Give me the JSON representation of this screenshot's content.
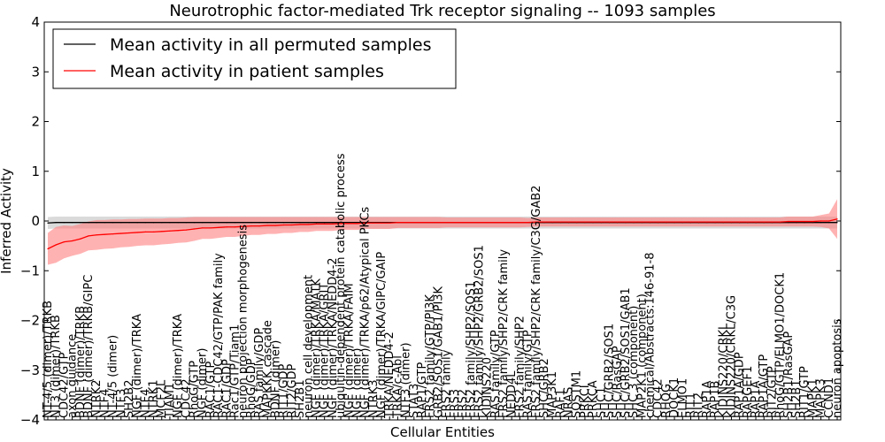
{
  "chart_data": {
    "type": "line",
    "title": "Neurotrophic factor-mediated Trk receptor signaling -- 1093 samples",
    "xlabel": "Cellular Entities",
    "ylabel": "Inferred Activity",
    "ylim": [
      -4,
      4
    ],
    "yticks": [
      -4,
      -3,
      -2,
      -1,
      0,
      1,
      2,
      3,
      4
    ],
    "grid": false,
    "legend_position": "top-left",
    "colors": {
      "permuted": "#000000",
      "patient": "#ff0000",
      "permuted_band": "#bbbbbb",
      "patient_band": "#ff7f7f"
    },
    "categories": [
      "NT-4/5 (dimer)/TRKB",
      "NT3 (dimer)/TRKB",
      "CDC42/GTP",
      "axon guidance",
      "BDNF (dimer)/TRKB",
      "BDNF (dimer)/TRKB/GIPC",
      "NTRK2",
      "NTF4",
      "NT-4/5 (dimer)",
      "NTF3",
      "SH2B2",
      "NGF (dimer)/TRKA",
      "NTF4",
      "NTRK1",
      "MCF2L",
      "TIAM1",
      "NGF (dimer)/TRKA",
      "CDC42",
      "RhoG/GTP",
      "NGF (dimer)",
      "RAC1/GTP",
      "RAC1-CDC42/GTP/PAK family",
      "RAC1/GDP",
      "Rac1/GTP/Tiam1",
      "neuron projection morphogenesis",
      "RhoG/GDP",
      "RAS family/GDP",
      "MAPKKK cascade",
      "BDNF (dimer)",
      "RIT1/GDP",
      "RIT2/GDP",
      "SH2B1",
      "neuron cell development",
      "NGF (dimer)/TRKA/MATK",
      "NGF (dimer)/TRKA/GRIT",
      "NGF (dimer)/TRKA/NEDD4-2",
      "ubiquitin-dependent protein catabolic process",
      "NGF (dimer)/TRKA/FAIM",
      "NGF (dimer)",
      "NGF (dimer)/TRKA/p62/Atypical PKCs",
      "NTRK3",
      "NGF (dimer)/TRKA/GIPC/GAIP",
      "TRKA/NEDD4-2",
      "TRKA/c-Abl",
      "NTF3 (dimer)",
      "STAT3",
      "RAP1/GTP",
      "FRS2 family/GTP/PI3K",
      "GRB2/SOS1/GAB1/PI3K",
      "FRS2 family",
      "FRS3",
      "FRS2",
      "FRS2 family/SHP2/SOS1",
      "FRS2 family/SHP2/GRB2/SOS1",
      "KIDINS220",
      "RAS family/GTP",
      "FRS2 family/SHP2/CRK family",
      "NEDD4L",
      "FRS2 family/SHP2",
      "RAS family/GTP",
      "FRS2 family/SHP2/CRK family/C3G/GAB2",
      "SHC/GRB2",
      "MAP3K1",
      "RAF1",
      "NRAS",
      "SQSTM1",
      "PRKCI",
      "PRKCA",
      "SHC1",
      "SHC/GRB2/SOS1",
      "SHC/RasGAP",
      "SHC/GRB2/SOS1/GAB1",
      "SHC 3 (component)",
      "MAP2K1 (component)",
      "chemical/Abstracts:146-91-8",
      "CDC42",
      "RHOG",
      "DOCK1",
      "ELMO1",
      "RIT1",
      "RIT2",
      "RAP1A",
      "RAP1B",
      "KIDINS220/CRKL",
      "KIDINS220/CRKL/C3G",
      "RAP1A/GDP",
      "RAPGEF1",
      "RAP1A",
      "RAP1A/GTP",
      "RIT2/GTP",
      "RhoG/GTP/ELMO1/DOCK1",
      "SH2B1/RasGAP",
      "SH2B1",
      "RIT1/GTP",
      "MAPK1",
      "MAPK3",
      "CCND1",
      "neuron apoptosis"
    ],
    "series": [
      {
        "name": "Mean activity in all permuted samples",
        "values": [
          -0.04,
          -0.03,
          -0.03,
          -0.03,
          -0.03,
          -0.03,
          -0.03,
          -0.03,
          -0.03,
          -0.03,
          -0.03,
          -0.03,
          -0.03,
          -0.03,
          -0.03,
          -0.03,
          -0.03,
          -0.03,
          -0.03,
          -0.03,
          -0.03,
          -0.03,
          -0.03,
          -0.03,
          -0.03,
          -0.03,
          -0.03,
          -0.03,
          -0.03,
          -0.03,
          -0.03,
          -0.03,
          -0.03,
          -0.03,
          -0.03,
          -0.03,
          -0.03,
          -0.03,
          -0.03,
          -0.03,
          -0.03,
          -0.03,
          -0.03,
          -0.03,
          -0.03,
          -0.03,
          -0.03,
          -0.03,
          -0.03,
          -0.03,
          -0.03,
          -0.03,
          -0.03,
          -0.03,
          -0.03,
          -0.03,
          -0.03,
          -0.03,
          -0.03,
          -0.03,
          -0.03,
          -0.03,
          -0.03,
          -0.03,
          -0.03,
          -0.03,
          -0.03,
          -0.03,
          -0.03,
          -0.03,
          -0.03,
          -0.03,
          -0.03,
          -0.03,
          -0.03,
          -0.03,
          -0.03,
          -0.03,
          -0.03,
          -0.03,
          -0.03,
          -0.03,
          -0.03,
          -0.03,
          -0.03,
          -0.03,
          -0.03,
          -0.03,
          -0.03,
          -0.03,
          -0.03,
          -0.03,
          -0.03,
          -0.03,
          -0.03,
          -0.03,
          -0.03,
          -0.03
        ],
        "band": [
          0.12,
          0.12,
          0.12,
          0.12,
          0.12,
          0.12,
          0.12,
          0.12,
          0.12,
          0.12,
          0.12,
          0.12,
          0.12,
          0.12,
          0.12,
          0.12,
          0.12,
          0.12,
          0.12,
          0.12,
          0.12,
          0.12,
          0.12,
          0.12,
          0.12,
          0.12,
          0.12,
          0.12,
          0.12,
          0.12,
          0.12,
          0.12,
          0.12,
          0.12,
          0.12,
          0.12,
          0.12,
          0.12,
          0.12,
          0.12,
          0.12,
          0.12,
          0.12,
          0.12,
          0.12,
          0.12,
          0.12,
          0.12,
          0.12,
          0.12,
          0.12,
          0.12,
          0.12,
          0.12,
          0.12,
          0.12,
          0.12,
          0.12,
          0.12,
          0.12,
          0.12,
          0.12,
          0.12,
          0.12,
          0.12,
          0.12,
          0.12,
          0.12,
          0.12,
          0.12,
          0.12,
          0.12,
          0.12,
          0.12,
          0.12,
          0.12,
          0.12,
          0.12,
          0.12,
          0.12,
          0.12,
          0.12,
          0.12,
          0.12,
          0.12,
          0.12,
          0.12,
          0.12,
          0.12,
          0.12,
          0.12,
          0.12,
          0.12,
          0.12,
          0.12,
          0.12,
          0.12,
          0.12
        ]
      },
      {
        "name": "Mean activity in patient samples",
        "values": [
          -0.56,
          -0.48,
          -0.42,
          -0.4,
          -0.36,
          -0.3,
          -0.28,
          -0.27,
          -0.26,
          -0.25,
          -0.24,
          -0.23,
          -0.22,
          -0.22,
          -0.21,
          -0.2,
          -0.19,
          -0.18,
          -0.16,
          -0.14,
          -0.14,
          -0.13,
          -0.12,
          -0.12,
          -0.11,
          -0.1,
          -0.1,
          -0.09,
          -0.09,
          -0.08,
          -0.08,
          -0.07,
          -0.07,
          -0.06,
          -0.06,
          -0.06,
          -0.05,
          -0.05,
          -0.05,
          -0.04,
          -0.04,
          -0.04,
          -0.04,
          -0.03,
          -0.03,
          -0.03,
          -0.03,
          -0.03,
          -0.03,
          -0.03,
          -0.03,
          -0.03,
          -0.03,
          -0.03,
          -0.03,
          -0.03,
          -0.03,
          -0.03,
          -0.03,
          -0.03,
          -0.02,
          -0.02,
          -0.02,
          -0.02,
          -0.02,
          -0.02,
          -0.02,
          -0.02,
          -0.02,
          -0.02,
          -0.02,
          -0.02,
          -0.02,
          -0.02,
          -0.02,
          -0.02,
          -0.02,
          -0.02,
          -0.02,
          -0.02,
          -0.02,
          -0.02,
          -0.02,
          -0.02,
          -0.02,
          -0.02,
          -0.02,
          -0.02,
          -0.02,
          -0.02,
          -0.02,
          -0.01,
          -0.01,
          -0.01,
          -0.01,
          0.0,
          0.0,
          0.04
        ],
        "band": [
          0.32,
          0.36,
          0.33,
          0.3,
          0.3,
          0.29,
          0.3,
          0.29,
          0.29,
          0.28,
          0.28,
          0.27,
          0.27,
          0.27,
          0.26,
          0.26,
          0.25,
          0.25,
          0.24,
          0.22,
          0.22,
          0.21,
          0.2,
          0.2,
          0.19,
          0.18,
          0.18,
          0.17,
          0.17,
          0.16,
          0.16,
          0.15,
          0.15,
          0.14,
          0.14,
          0.14,
          0.13,
          0.13,
          0.13,
          0.12,
          0.12,
          0.12,
          0.12,
          0.11,
          0.11,
          0.11,
          0.11,
          0.11,
          0.11,
          0.1,
          0.1,
          0.1,
          0.1,
          0.1,
          0.1,
          0.1,
          0.1,
          0.1,
          0.1,
          0.09,
          0.09,
          0.09,
          0.09,
          0.09,
          0.09,
          0.09,
          0.09,
          0.09,
          0.09,
          0.09,
          0.09,
          0.09,
          0.09,
          0.09,
          0.09,
          0.09,
          0.09,
          0.09,
          0.09,
          0.09,
          0.09,
          0.09,
          0.09,
          0.09,
          0.09,
          0.09,
          0.09,
          0.09,
          0.09,
          0.09,
          0.09,
          0.1,
          0.1,
          0.1,
          0.1,
          0.12,
          0.15,
          0.4
        ]
      }
    ]
  }
}
